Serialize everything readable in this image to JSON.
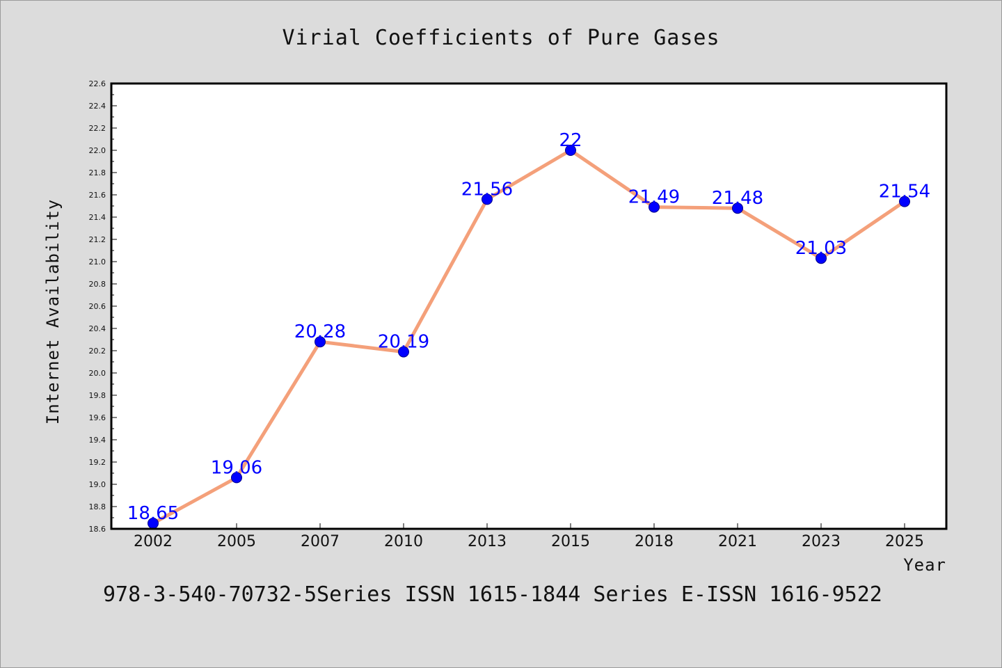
{
  "chart_data": {
    "type": "line",
    "title": "Virial Coefficients of Pure Gases",
    "xlabel": "Year",
    "ylabel": "Internet Availability",
    "categories": [
      "2002",
      "2005",
      "2007",
      "2010",
      "2013",
      "2015",
      "2018",
      "2021",
      "2023",
      "2025"
    ],
    "series": [
      {
        "values": [
          18.65,
          19.06,
          20.28,
          20.19,
          21.56,
          22,
          21.49,
          21.48,
          21.03,
          21.54
        ],
        "labels": [
          "18.65",
          "19.06",
          "20.28",
          "20.19",
          "21.56",
          "22",
          "21.49",
          "21.48",
          "21.03",
          "21.54"
        ],
        "line_color": "#f4a07a",
        "marker_color": "#0000ff"
      }
    ],
    "ylim": [
      18.6,
      22.6
    ],
    "yticks": [
      "18.6",
      "18.8",
      "19.0",
      "19.2",
      "19.4",
      "19.6",
      "19.8",
      "20.0",
      "20.2",
      "20.4",
      "20.6",
      "20.8",
      "21.0",
      "21.2",
      "21.4",
      "21.6",
      "21.8",
      "22.0",
      "22.2",
      "22.4",
      "22.6"
    ],
    "grid": false,
    "legend": "none"
  },
  "footer": {
    "text": "978-3-540-70732-5Series ISSN 1615-1844 Series E-ISSN 1616-9522"
  },
  "colors": {
    "background": "#dcdcdc",
    "plot_background": "#ffffff"
  }
}
